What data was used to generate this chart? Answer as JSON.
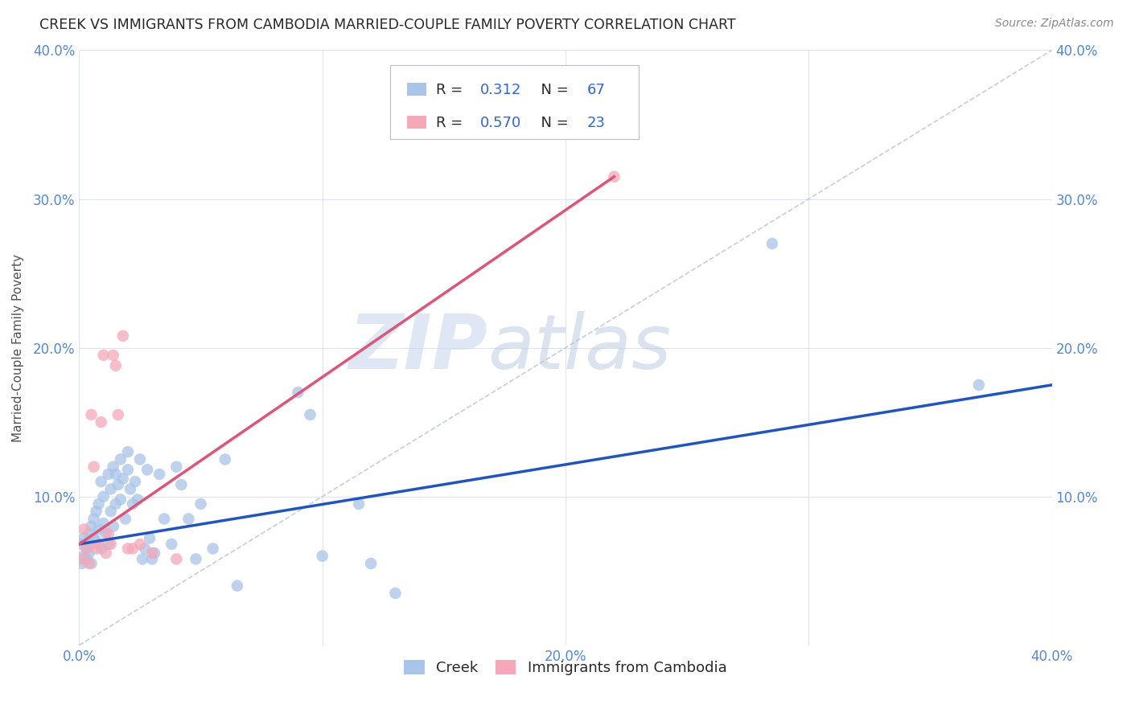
{
  "title": "CREEK VS IMMIGRANTS FROM CAMBODIA MARRIED-COUPLE FAMILY POVERTY CORRELATION CHART",
  "source": "Source: ZipAtlas.com",
  "ylabel": "Married-Couple Family Poverty",
  "xlim": [
    0.0,
    0.4
  ],
  "ylim": [
    0.0,
    0.4
  ],
  "xticks": [
    0.0,
    0.1,
    0.2,
    0.3,
    0.4
  ],
  "yticks": [
    0.0,
    0.1,
    0.2,
    0.3,
    0.4
  ],
  "xticklabels": [
    "0.0%",
    "",
    "20.0%",
    "",
    "40.0%"
  ],
  "yticklabels": [
    "",
    "10.0%",
    "20.0%",
    "30.0%",
    "40.0%"
  ],
  "creek_color": "#a8c4e8",
  "cambodia_color": "#f4a8b8",
  "creek_line_color": "#2255bb",
  "cambodia_line_color": "#dd5577",
  "diagonal_color": "#c0c8d8",
  "creek_R": "0.312",
  "creek_N": "67",
  "cambodia_R": "0.570",
  "cambodia_N": "23",
  "creek_line_x0": 0.0,
  "creek_line_y0": 0.068,
  "creek_line_x1": 0.4,
  "creek_line_y1": 0.175,
  "cambodia_line_x0": 0.0,
  "cambodia_line_y0": 0.068,
  "cambodia_line_x1": 0.22,
  "cambodia_line_y1": 0.315,
  "creek_data": [
    [
      0.001,
      0.055
    ],
    [
      0.001,
      0.068
    ],
    [
      0.002,
      0.072
    ],
    [
      0.002,
      0.06
    ],
    [
      0.003,
      0.065
    ],
    [
      0.003,
      0.058
    ],
    [
      0.004,
      0.075
    ],
    [
      0.004,
      0.062
    ],
    [
      0.005,
      0.08
    ],
    [
      0.005,
      0.068
    ],
    [
      0.005,
      0.055
    ],
    [
      0.006,
      0.072
    ],
    [
      0.006,
      0.085
    ],
    [
      0.007,
      0.09
    ],
    [
      0.007,
      0.07
    ],
    [
      0.008,
      0.095
    ],
    [
      0.008,
      0.078
    ],
    [
      0.009,
      0.11
    ],
    [
      0.009,
      0.065
    ],
    [
      0.01,
      0.1
    ],
    [
      0.01,
      0.082
    ],
    [
      0.011,
      0.075
    ],
    [
      0.012,
      0.115
    ],
    [
      0.012,
      0.068
    ],
    [
      0.013,
      0.105
    ],
    [
      0.013,
      0.09
    ],
    [
      0.014,
      0.08
    ],
    [
      0.014,
      0.12
    ],
    [
      0.015,
      0.115
    ],
    [
      0.015,
      0.095
    ],
    [
      0.016,
      0.108
    ],
    [
      0.017,
      0.125
    ],
    [
      0.017,
      0.098
    ],
    [
      0.018,
      0.112
    ],
    [
      0.019,
      0.085
    ],
    [
      0.02,
      0.13
    ],
    [
      0.02,
      0.118
    ],
    [
      0.021,
      0.105
    ],
    [
      0.022,
      0.095
    ],
    [
      0.023,
      0.11
    ],
    [
      0.024,
      0.098
    ],
    [
      0.025,
      0.125
    ],
    [
      0.026,
      0.058
    ],
    [
      0.027,
      0.065
    ],
    [
      0.028,
      0.118
    ],
    [
      0.029,
      0.072
    ],
    [
      0.03,
      0.058
    ],
    [
      0.031,
      0.062
    ],
    [
      0.033,
      0.115
    ],
    [
      0.035,
      0.085
    ],
    [
      0.038,
      0.068
    ],
    [
      0.04,
      0.12
    ],
    [
      0.042,
      0.108
    ],
    [
      0.045,
      0.085
    ],
    [
      0.048,
      0.058
    ],
    [
      0.05,
      0.095
    ],
    [
      0.055,
      0.065
    ],
    [
      0.06,
      0.125
    ],
    [
      0.065,
      0.04
    ],
    [
      0.09,
      0.17
    ],
    [
      0.095,
      0.155
    ],
    [
      0.1,
      0.06
    ],
    [
      0.115,
      0.095
    ],
    [
      0.12,
      0.055
    ],
    [
      0.13,
      0.035
    ],
    [
      0.285,
      0.27
    ],
    [
      0.37,
      0.175
    ]
  ],
  "cambodia_data": [
    [
      0.001,
      0.058
    ],
    [
      0.002,
      0.078
    ],
    [
      0.003,
      0.065
    ],
    [
      0.004,
      0.055
    ],
    [
      0.005,
      0.155
    ],
    [
      0.006,
      0.12
    ],
    [
      0.007,
      0.065
    ],
    [
      0.008,
      0.068
    ],
    [
      0.009,
      0.15
    ],
    [
      0.01,
      0.195
    ],
    [
      0.011,
      0.062
    ],
    [
      0.012,
      0.075
    ],
    [
      0.013,
      0.068
    ],
    [
      0.014,
      0.195
    ],
    [
      0.015,
      0.188
    ],
    [
      0.016,
      0.155
    ],
    [
      0.018,
      0.208
    ],
    [
      0.02,
      0.065
    ],
    [
      0.022,
      0.065
    ],
    [
      0.025,
      0.068
    ],
    [
      0.03,
      0.062
    ],
    [
      0.04,
      0.058
    ],
    [
      0.22,
      0.315
    ]
  ],
  "watermark_zip": "ZIP",
  "watermark_atlas": "atlas",
  "background_color": "#ffffff",
  "grid_color": "#dde4f0",
  "title_color": "#282828",
  "axis_label_color": "#505050",
  "tick_label_color": "#5588cc",
  "legend_text_color": "#282828",
  "r_value_color": "#3366cc",
  "n_value_color": "#3366cc"
}
